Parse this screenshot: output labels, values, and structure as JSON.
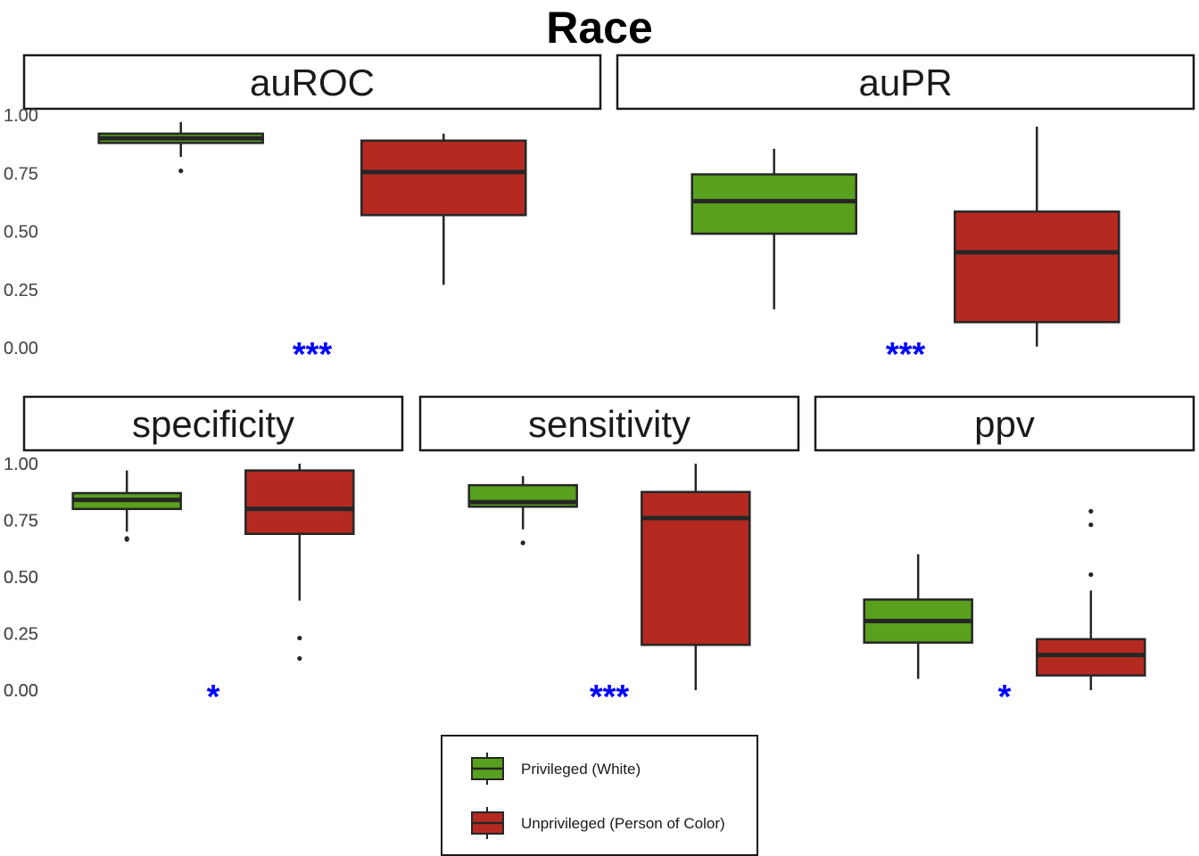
{
  "chart_data": {
    "type": "boxplot",
    "title": "Race",
    "ylim": [
      0,
      1
    ],
    "y_ticks": [
      "0.00",
      "0.25",
      "0.50",
      "0.75",
      "1.00"
    ],
    "groups": [
      {
        "name": "Privileged (White)",
        "color": "#58a01d"
      },
      {
        "name": "Unprivileged (Person of Color)",
        "color": "#b42a21"
      }
    ],
    "panels": [
      {
        "label": "auROC",
        "significance": "***",
        "boxes": [
          {
            "group": "Privileged (White)",
            "q1": 0.88,
            "median": 0.9,
            "q3": 0.92,
            "lower_whisker": 0.82,
            "upper_whisker": 0.97,
            "outliers": [
              0.76
            ]
          },
          {
            "group": "Unprivileged (Person of Color)",
            "q1": 0.57,
            "median": 0.755,
            "q3": 0.89,
            "lower_whisker": 0.27,
            "upper_whisker": 0.92,
            "outliers": []
          }
        ]
      },
      {
        "label": "auPR",
        "significance": "***",
        "boxes": [
          {
            "group": "Privileged (White)",
            "q1": 0.49,
            "median": 0.63,
            "q3": 0.745,
            "lower_whisker": 0.165,
            "upper_whisker": 0.855,
            "outliers": []
          },
          {
            "group": "Unprivileged (Person of Color)",
            "q1": 0.11,
            "median": 0.41,
            "q3": 0.585,
            "lower_whisker": 0.005,
            "upper_whisker": 0.95,
            "outliers": []
          }
        ]
      },
      {
        "label": "specificity",
        "significance": "*",
        "boxes": [
          {
            "group": "Privileged (White)",
            "q1": 0.8,
            "median": 0.84,
            "q3": 0.87,
            "lower_whisker": 0.7,
            "upper_whisker": 0.97,
            "outliers": [
              0.67,
              0.665
            ]
          },
          {
            "group": "Unprivileged (Person of Color)",
            "q1": 0.69,
            "median": 0.8,
            "q3": 0.97,
            "lower_whisker": 0.395,
            "upper_whisker": 1.0,
            "outliers": [
              0.23,
              0.14
            ]
          }
        ]
      },
      {
        "label": "sensitivity",
        "significance": "***",
        "boxes": [
          {
            "group": "Privileged (White)",
            "q1": 0.81,
            "median": 0.83,
            "q3": 0.905,
            "lower_whisker": 0.71,
            "upper_whisker": 0.945,
            "outliers": [
              0.65
            ]
          },
          {
            "group": "Unprivileged (Person of Color)",
            "q1": 0.2,
            "median": 0.76,
            "q3": 0.875,
            "lower_whisker": 0.0,
            "upper_whisker": 1.0,
            "outliers": []
          }
        ]
      },
      {
        "label": "ppv",
        "significance": "*",
        "boxes": [
          {
            "group": "Privileged (White)",
            "q1": 0.21,
            "median": 0.305,
            "q3": 0.4,
            "lower_whisker": 0.05,
            "upper_whisker": 0.6,
            "outliers": []
          },
          {
            "group": "Unprivileged (Person of Color)",
            "q1": 0.065,
            "median": 0.155,
            "q3": 0.225,
            "lower_whisker": 0.0,
            "upper_whisker": 0.44,
            "outliers": [
              0.51,
              0.73,
              0.79
            ]
          }
        ]
      }
    ],
    "legend": [
      "Privileged (White)",
      "Unprivileged (Person of Color)"
    ],
    "legend_position": "bottom",
    "significance_color": "#0000ff"
  }
}
